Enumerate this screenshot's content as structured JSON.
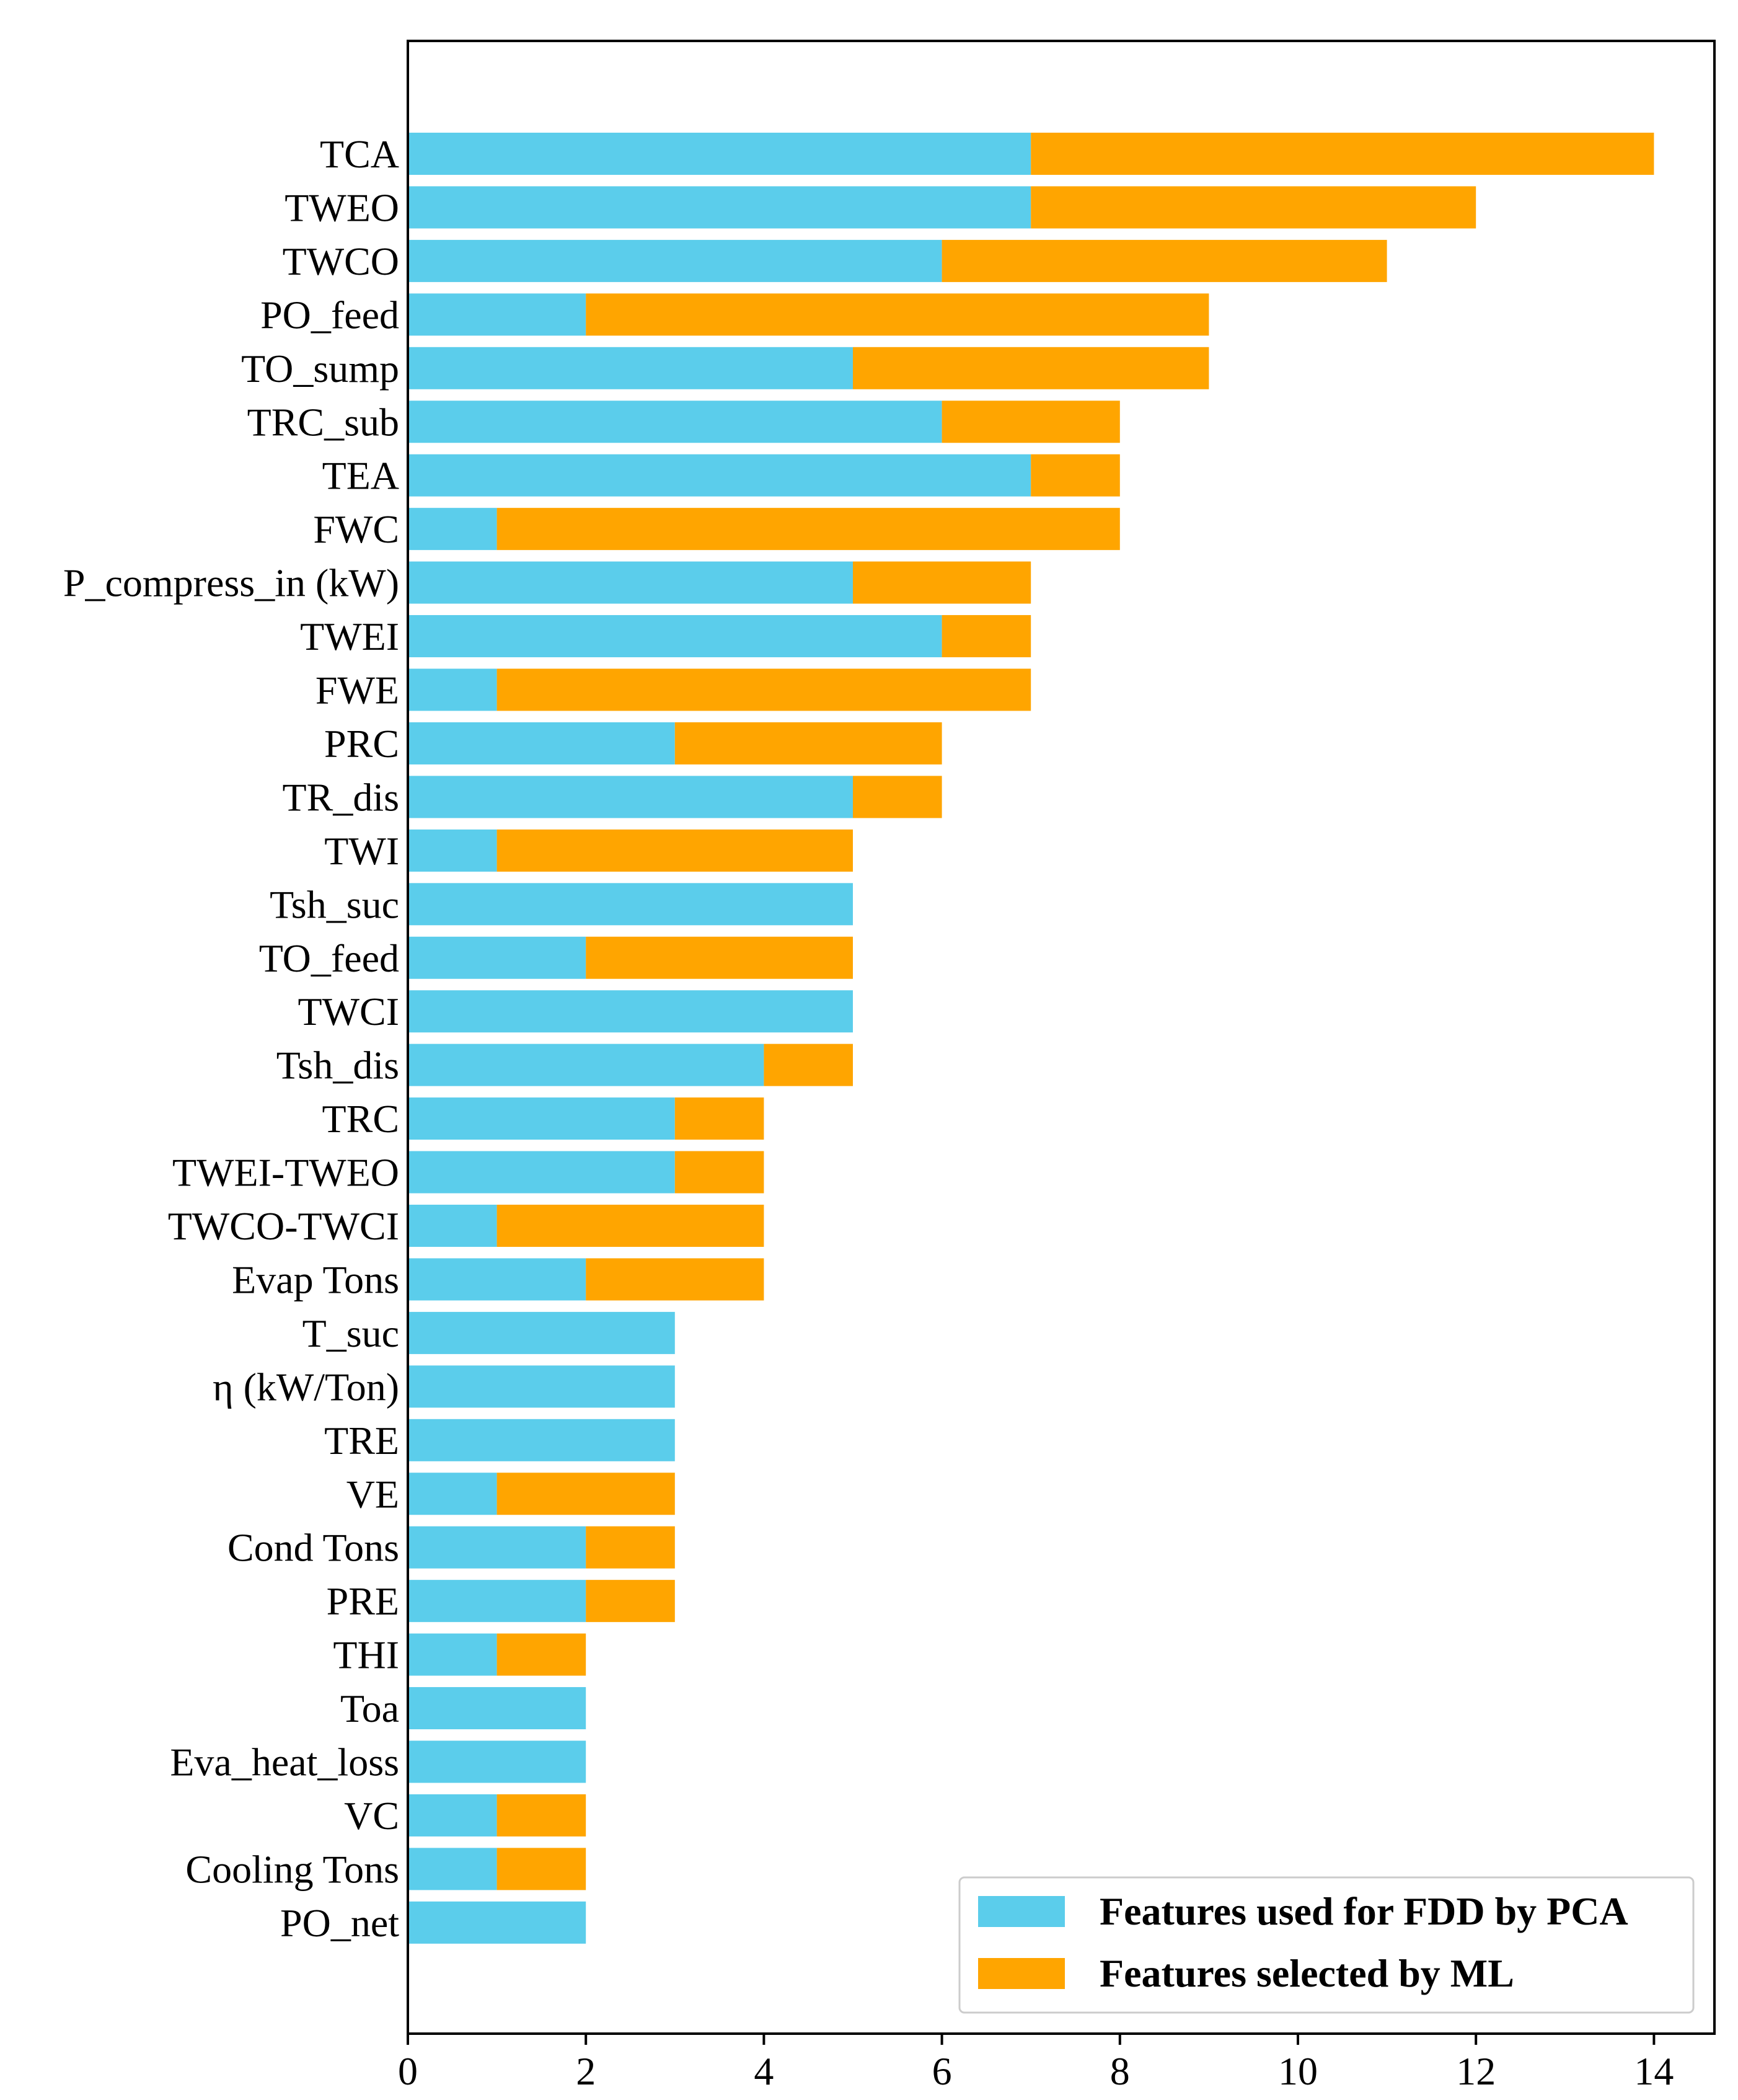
{
  "chart_data": {
    "type": "bar",
    "orientation": "horizontal",
    "stacked": true,
    "title": "",
    "xlabel": "",
    "ylabel": "",
    "xlim": [
      0,
      14.7
    ],
    "xticks": [
      0,
      2,
      4,
      6,
      8,
      10,
      12,
      14
    ],
    "grid": false,
    "legend_position": "bottom-right",
    "colors": {
      "pca": "#5BCDEB",
      "ml": "#FFA500",
      "axis": "#000000"
    },
    "categories": [
      "TCA",
      "TWEO",
      "TWCO",
      "PO_feed",
      "TO_sump",
      "TRC_sub",
      "TEA",
      "FWC",
      "P_compress_in (kW)",
      "TWEI",
      "FWE",
      "PRC",
      "TR_dis",
      "TWI",
      "Tsh_suc",
      "TO_feed",
      "TWCI",
      "Tsh_dis",
      "TRC",
      "TWEI-TWEO",
      "TWCO-TWCI",
      "Evap Tons",
      "T_suc",
      "η (kW/Ton)",
      "TRE",
      "VE",
      "Cond Tons",
      "PRE",
      "THI",
      "Toa",
      "Eva_heat_loss",
      "VC",
      "Cooling Tons",
      "PO_net"
    ],
    "series": [
      {
        "name": "Features used for FDD by PCA",
        "values": [
          7,
          7,
          6,
          2,
          5,
          6,
          7,
          1,
          5,
          6,
          1,
          3,
          5,
          1,
          5,
          2,
          5,
          4,
          3,
          3,
          1,
          2,
          3,
          3,
          3,
          1,
          2,
          2,
          1,
          2,
          2,
          1,
          1,
          2
        ]
      },
      {
        "name": "Features selected by ML",
        "values": [
          7,
          5,
          5,
          7,
          4,
          2,
          1,
          7,
          2,
          1,
          6,
          3,
          1,
          4,
          0,
          3,
          0,
          1,
          1,
          1,
          3,
          2,
          0,
          0,
          0,
          2,
          1,
          1,
          1,
          0,
          0,
          1,
          1,
          0
        ]
      }
    ]
  }
}
